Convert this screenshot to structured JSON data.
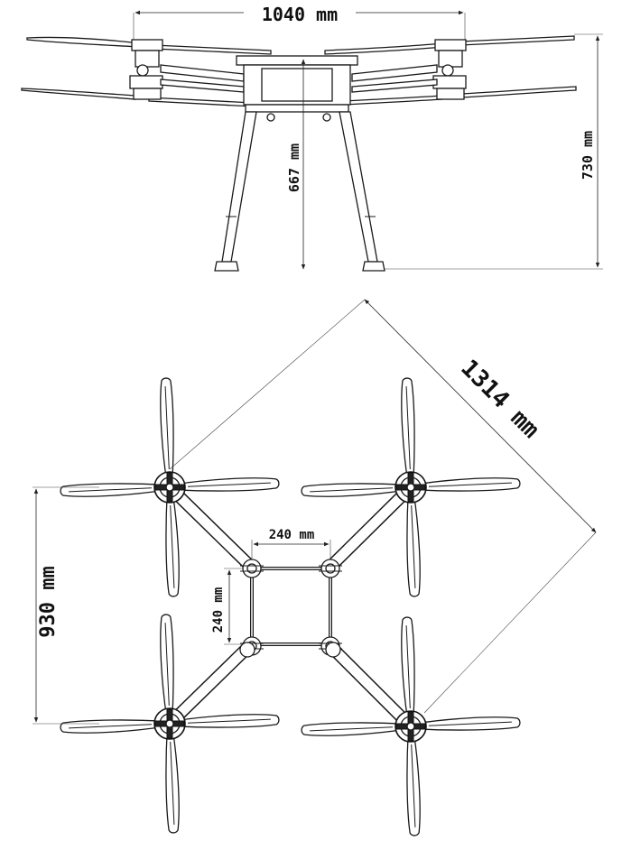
{
  "side_view": {
    "width_label": "1040 mm",
    "frame_height_label": "667 mm",
    "total_height_label": "730 mm"
  },
  "top_view": {
    "diagonal_label": "1314 mm",
    "overall_label": "930 mm",
    "frame_width_label": "240 mm",
    "frame_height_label": "240 mm"
  },
  "colors": {
    "line": "#1a1a1a",
    "background": "#ffffff"
  }
}
